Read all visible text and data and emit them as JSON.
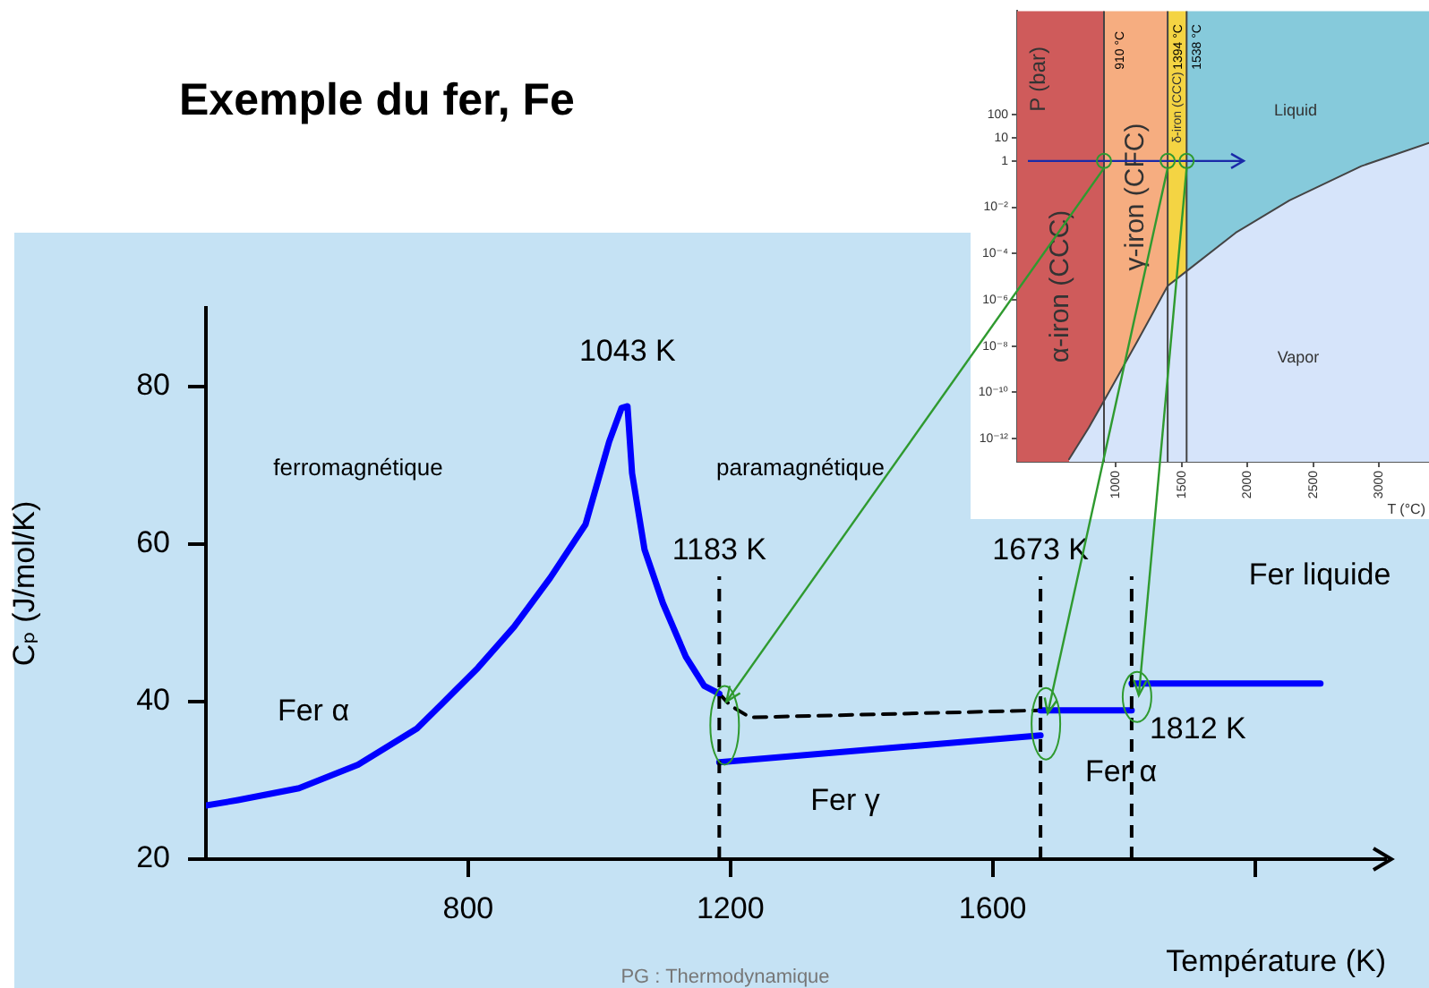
{
  "chart_data": [
    {
      "type": "line",
      "title": "Exemple du fer, Fe",
      "xlabel": "Température (K)",
      "ylabel": "Cₚ (J/mol/K)",
      "xlim": [
        400,
        2200
      ],
      "xticks": [
        800,
        1200,
        1600,
        {
          "value": 2000,
          "label": null
        }
      ],
      "ylim": [
        20,
        90
      ],
      "yticks": [
        20,
        40,
        60,
        80
      ],
      "series": [
        {
          "color": "#0000ff",
          "x": [
            400,
            449,
            542,
            632,
            722,
            761,
            815,
            870,
            925,
            979,
            1015,
            1034,
            1043,
            1050,
            1069,
            1097,
            1132,
            1160,
            1183
          ],
          "values": [
            26.8,
            27.5,
            29,
            32,
            36.6,
            39.8,
            44.3,
            49.5,
            55.7,
            62.5,
            73,
            77.3,
            77.5,
            69,
            59.3,
            52.5,
            45.7,
            42,
            41
          ]
        },
        {
          "color": "#0000ff",
          "x": [
            1183,
            1673
          ],
          "values": [
            32.3,
            35.7
          ]
        },
        {
          "color": "#0000ff",
          "x": [
            1673,
            1812
          ],
          "values": [
            38.9,
            38.9
          ]
        },
        {
          "color": "#0000ff",
          "x": [
            1812,
            2100
          ],
          "values": [
            42.3,
            42.3
          ]
        },
        {
          "color": "#000000",
          "line_style": "dashed",
          "x": [
            1183,
            1200,
            1230,
            1673
          ],
          "values": [
            41,
            39.5,
            38,
            38.9
          ]
        }
      ],
      "ref_lines": [
        {
          "axis": "x",
          "value": 1183,
          "label": "1183 K",
          "color": "#000000",
          "line_style": "dashed"
        },
        {
          "axis": "x",
          "value": 1673,
          "label": "1673 K",
          "color": "#000000",
          "line_style": "dashed"
        },
        {
          "axis": "x",
          "value": 1812,
          "label": "1812 K",
          "color": "#000000",
          "line_style": "dashed"
        }
      ],
      "annotations": [
        {
          "text": "1043 K",
          "x": 1043,
          "y": 77.5
        },
        "ferromagnétique",
        "paramagnétique",
        "Fer α",
        "Fer γ",
        "Fer α",
        "Fer liquide",
        "PG : Thermodynamique"
      ],
      "grid": false,
      "legend": false
    },
    {
      "type": "area",
      "xlabel": "T (°C)",
      "ylabel": "P (bar)",
      "log": "y",
      "xlim": [
        250,
        3380
      ],
      "xticks": [
        1000,
        1500,
        2000,
        2500,
        3000
      ],
      "ylim": [
        1e-13,
        3000000
      ],
      "yticks": [
        {
          "value": 1e-12,
          "label": "10⁻¹²"
        },
        {
          "value": 1e-10,
          "label": "10⁻¹⁰"
        },
        {
          "value": 1e-08,
          "label": "10⁻⁸"
        },
        {
          "value": 1e-06,
          "label": "10⁻⁶"
        },
        {
          "value": 0.0001,
          "label": "10⁻⁴"
        },
        {
          "value": 0.01,
          "label": "10⁻²"
        },
        1,
        10,
        100
      ],
      "series": [
        {
          "color": "#d6e4fa",
          "x": [
            645,
            795,
            931,
            1163,
            1394,
            1530,
            1912,
            2320,
            2866,
            3380
          ],
          "values": [
            1.3e-13,
            3e-12,
            7e-11,
            1.6e-08,
            4e-06,
            1.6e-05,
            0.0008,
            0.02,
            0.6,
            6
          ]
        }
      ],
      "bands": [
        {
          "axis": "x",
          "from": 250,
          "to": 910,
          "label": "α-iron (CCC)",
          "color": "#cf5b5b"
        },
        {
          "axis": "x",
          "from": 910,
          "to": 1394,
          "label": "γ-iron (CFC)",
          "color": "#f6ad80"
        },
        {
          "axis": "x",
          "from": 1394,
          "to": 1538,
          "label": "δ-iron (CCC)",
          "color": "#f4d443"
        },
        {
          "axis": "x",
          "from": 1538,
          "to": 3380,
          "label": "Liquid",
          "color": "#86cadb"
        }
      ],
      "ref_lines": [
        {
          "axis": "x",
          "value": 910,
          "label": "910 °C",
          "color": "#444444"
        },
        {
          "axis": "x",
          "value": 1394,
          "label": "1394 °C",
          "color": "#444444"
        },
        {
          "axis": "x",
          "value": 1538,
          "label": "1538 °C",
          "color": "#444444"
        },
        {
          "axis": "y",
          "value": 1,
          "color": "#1a2aa8"
        }
      ],
      "annotations": [
        "Vapor"
      ],
      "grid": false,
      "legend": false
    }
  ]
}
